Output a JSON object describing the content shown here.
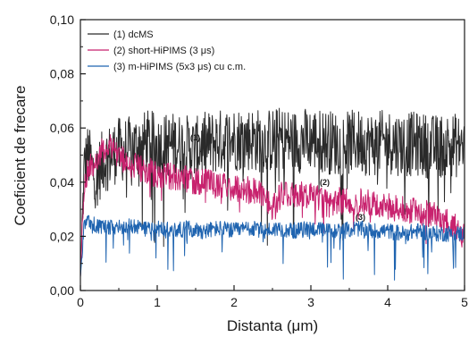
{
  "chart_data": {
    "type": "line",
    "title": "",
    "xlabel": "Distanta (μm)",
    "ylabel": "Coeficient de frecare",
    "xlim": [
      0,
      5
    ],
    "ylim": [
      0,
      0.1
    ],
    "x_ticks": [
      0,
      1,
      2,
      3,
      4,
      5
    ],
    "x_tick_labels": [
      "0",
      "1",
      "2",
      "3",
      "4",
      "5"
    ],
    "y_ticks": [
      0,
      0.02,
      0.04,
      0.06,
      0.08,
      0.1
    ],
    "y_tick_labels": [
      "0,00",
      "0,02",
      "0,04",
      "0,06",
      "0,08",
      "0,10"
    ],
    "legend": {
      "placement": "top-left"
    },
    "series": [
      {
        "name": "(1) dcMS",
        "annotation": "(1)",
        "color": "#2a2a2a",
        "x": [
          0,
          0.05,
          0.1,
          0.15,
          0.2,
          0.3,
          0.4,
          0.5,
          0.6,
          0.7,
          0.8,
          0.9,
          1.0,
          1.2,
          1.4,
          1.5,
          1.6,
          1.8,
          2.0,
          2.2,
          2.4,
          2.6,
          2.8,
          3.0,
          3.2,
          3.4,
          3.6,
          3.8,
          4.0,
          4.2,
          4.4,
          4.6,
          4.8,
          5.0
        ],
        "y": [
          0.005,
          0.045,
          0.05,
          0.045,
          0.042,
          0.048,
          0.05,
          0.052,
          0.052,
          0.053,
          0.054,
          0.055,
          0.053,
          0.054,
          0.053,
          0.052,
          0.054,
          0.055,
          0.056,
          0.056,
          0.055,
          0.056,
          0.055,
          0.056,
          0.055,
          0.054,
          0.055,
          0.054,
          0.055,
          0.054,
          0.054,
          0.053,
          0.054,
          0.053
        ]
      },
      {
        "name": "(2) short-HiPIMS (3 μs)",
        "annotation": "(2)",
        "color": "#c8226e",
        "x": [
          0,
          0.05,
          0.1,
          0.2,
          0.3,
          0.4,
          0.5,
          0.6,
          0.8,
          1.0,
          1.2,
          1.4,
          1.6,
          1.8,
          2.0,
          2.2,
          2.4,
          2.5,
          2.6,
          2.8,
          3.0,
          3.2,
          3.4,
          3.6,
          3.8,
          4.0,
          4.2,
          4.4,
          4.6,
          4.8,
          5.0
        ],
        "y": [
          0.005,
          0.04,
          0.045,
          0.048,
          0.052,
          0.054,
          0.05,
          0.047,
          0.045,
          0.043,
          0.042,
          0.041,
          0.04,
          0.039,
          0.038,
          0.037,
          0.036,
          0.03,
          0.035,
          0.036,
          0.035,
          0.034,
          0.033,
          0.033,
          0.032,
          0.031,
          0.03,
          0.029,
          0.028,
          0.025,
          0.022
        ]
      },
      {
        "name": "(3) m-HiPIMS (5x3 μs) cu c.m.",
        "annotation": "(3)",
        "color": "#1f64b0",
        "x": [
          0,
          0.05,
          0.1,
          0.2,
          0.4,
          0.6,
          0.8,
          1.0,
          1.2,
          1.4,
          1.6,
          1.8,
          2.0,
          2.2,
          2.4,
          2.6,
          2.8,
          3.0,
          3.2,
          3.4,
          3.6,
          3.8,
          4.0,
          4.2,
          4.4,
          4.6,
          4.8,
          5.0
        ],
        "y": [
          0.005,
          0.025,
          0.026,
          0.024,
          0.023,
          0.024,
          0.023,
          0.023,
          0.022,
          0.023,
          0.022,
          0.023,
          0.022,
          0.023,
          0.022,
          0.023,
          0.022,
          0.023,
          0.022,
          0.022,
          0.023,
          0.022,
          0.022,
          0.021,
          0.022,
          0.021,
          0.021,
          0.021
        ]
      }
    ]
  }
}
